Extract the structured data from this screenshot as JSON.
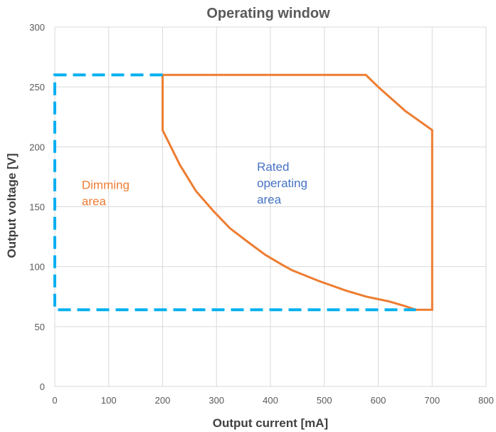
{
  "chart_data": {
    "type": "line",
    "title": "Operating window",
    "xlabel": "Output current [mA]",
    "ylabel": "Output voltage [V]",
    "xlim": [
      0,
      800
    ],
    "ylim": [
      0,
      300
    ],
    "x_ticks": [
      "0",
      "100",
      "200",
      "300",
      "400",
      "500",
      "600",
      "700",
      "800"
    ],
    "y_ticks": [
      "0",
      "50",
      "100",
      "150",
      "200",
      "250",
      "300"
    ],
    "grid": true,
    "legend": "none",
    "series": [
      {
        "color": "#ED7D31",
        "style": "solid",
        "points": [
          [
            200,
            260
          ],
          [
            577,
            260
          ],
          [
            600,
            250
          ],
          [
            650,
            230
          ],
          [
            700,
            214
          ],
          [
            700,
            64
          ],
          [
            670,
            64
          ],
          [
            650,
            67
          ],
          [
            620,
            71
          ],
          [
            578,
            75
          ],
          [
            540,
            80
          ],
          [
            490,
            88
          ],
          [
            440,
            97
          ],
          [
            420,
            102
          ],
          [
            390,
            110
          ],
          [
            360,
            120
          ],
          [
            325,
            132
          ],
          [
            295,
            146
          ],
          [
            262,
            163
          ],
          [
            232,
            185
          ],
          [
            200,
            214
          ],
          [
            200,
            260
          ]
        ]
      },
      {
        "color": "#00B0F0",
        "style": "dashed",
        "points": [
          [
            200,
            260
          ],
          [
            0,
            260
          ],
          [
            0,
            64
          ],
          [
            670,
            64
          ]
        ]
      }
    ],
    "annotations": [
      {
        "lines": [
          "Dimming",
          "area"
        ],
        "color": "#ED7D31",
        "x": 50,
        "y": 165
      },
      {
        "lines": [
          "Rated",
          "operating",
          "area"
        ],
        "color": "#4472C4",
        "x": 375,
        "y": 180
      }
    ]
  }
}
